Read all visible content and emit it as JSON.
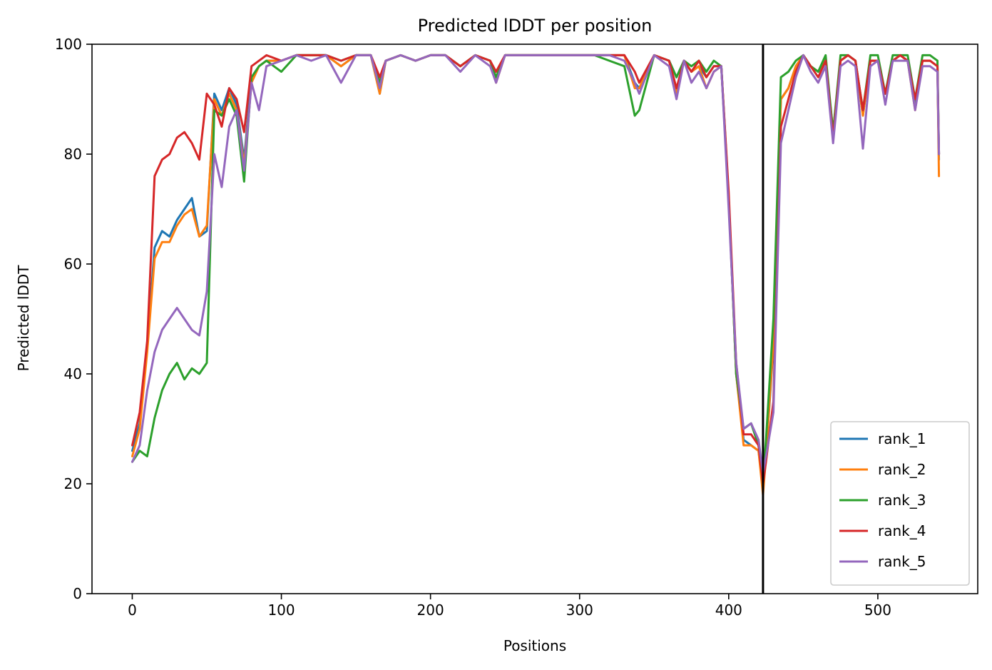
{
  "chart_data": {
    "type": "line",
    "title": "Predicted lDDT per position",
    "xlabel": "Positions",
    "ylabel": "Predicted lDDT",
    "xlim": [
      -27,
      567
    ],
    "ylim": [
      0,
      100
    ],
    "xticks": [
      0,
      100,
      200,
      300,
      400,
      500
    ],
    "yticks": [
      0,
      20,
      40,
      60,
      80,
      100
    ],
    "grid": false,
    "legend_position": "lower-right",
    "vertical_line": {
      "x": 423,
      "color": "#000000"
    },
    "series": [
      {
        "name": "rank_1",
        "color": "#1f77b4",
        "x": [
          0,
          5,
          10,
          15,
          20,
          25,
          30,
          35,
          40,
          45,
          50,
          55,
          60,
          65,
          70,
          75,
          80,
          85,
          90,
          100,
          110,
          120,
          130,
          140,
          150,
          160,
          166,
          170,
          180,
          190,
          200,
          210,
          220,
          230,
          240,
          244,
          250,
          260,
          270,
          280,
          290,
          300,
          310,
          320,
          330,
          337,
          340,
          350,
          360,
          365,
          370,
          375,
          380,
          385,
          390,
          395,
          400,
          405,
          410,
          415,
          420,
          423,
          425,
          430,
          435,
          440,
          445,
          450,
          455,
          460,
          465,
          470,
          475,
          480,
          485,
          490,
          495,
          500,
          505,
          510,
          515,
          520,
          525,
          530,
          535,
          540,
          541
        ],
        "values": [
          26,
          31,
          45,
          63,
          66,
          65,
          68,
          70,
          72,
          65,
          66,
          91,
          88,
          92,
          89,
          79,
          94,
          96,
          97,
          97,
          98,
          98,
          98,
          96,
          98,
          98,
          91,
          97,
          98,
          97,
          98,
          98,
          96,
          98,
          97,
          94,
          98,
          98,
          98,
          98,
          98,
          98,
          98,
          98,
          98,
          93,
          92,
          98,
          97,
          94,
          97,
          95,
          96,
          94,
          96,
          96,
          72,
          40,
          28,
          27,
          26,
          20,
          25,
          45,
          90,
          92,
          96,
          98,
          96,
          95,
          97,
          84,
          97,
          98,
          97,
          87,
          97,
          97,
          91,
          97,
          98,
          97,
          89,
          97,
          97,
          96,
          79
        ]
      },
      {
        "name": "rank_2",
        "color": "#ff7f0e",
        "x": [
          0,
          5,
          10,
          15,
          20,
          25,
          30,
          35,
          40,
          45,
          50,
          55,
          60,
          65,
          70,
          75,
          80,
          85,
          90,
          100,
          110,
          120,
          130,
          140,
          150,
          160,
          166,
          170,
          180,
          190,
          200,
          210,
          220,
          230,
          240,
          244,
          250,
          260,
          270,
          280,
          290,
          300,
          310,
          320,
          330,
          337,
          340,
          350,
          360,
          365,
          370,
          375,
          380,
          385,
          390,
          395,
          400,
          405,
          410,
          415,
          420,
          423,
          425,
          430,
          435,
          440,
          445,
          450,
          455,
          460,
          465,
          470,
          475,
          480,
          485,
          490,
          495,
          500,
          505,
          510,
          515,
          520,
          525,
          530,
          535,
          540,
          541
        ],
        "values": [
          25,
          30,
          44,
          61,
          64,
          64,
          67,
          69,
          70,
          65,
          67,
          90,
          87,
          91,
          88,
          78,
          93,
          96,
          97,
          97,
          98,
          98,
          98,
          96,
          98,
          98,
          91,
          97,
          98,
          97,
          98,
          98,
          96,
          98,
          97,
          93,
          98,
          98,
          98,
          98,
          98,
          98,
          98,
          98,
          98,
          92,
          92,
          98,
          97,
          91,
          97,
          95,
          96,
          92,
          95,
          96,
          72,
          40,
          27,
          27,
          26,
          18,
          25,
          46,
          90,
          92,
          96,
          98,
          96,
          95,
          97,
          84,
          97,
          98,
          97,
          87,
          97,
          97,
          91,
          97,
          98,
          97,
          88,
          97,
          97,
          96,
          76
        ]
      },
      {
        "name": "rank_3",
        "color": "#2ca02c",
        "x": [
          0,
          5,
          10,
          15,
          20,
          25,
          30,
          35,
          40,
          45,
          50,
          55,
          60,
          65,
          70,
          75,
          80,
          85,
          90,
          100,
          110,
          120,
          130,
          140,
          150,
          160,
          166,
          170,
          180,
          190,
          200,
          210,
          220,
          230,
          240,
          244,
          250,
          260,
          270,
          280,
          290,
          300,
          310,
          320,
          330,
          337,
          340,
          350,
          360,
          365,
          370,
          375,
          380,
          385,
          390,
          395,
          400,
          405,
          410,
          415,
          420,
          423,
          425,
          430,
          435,
          440,
          445,
          450,
          455,
          460,
          465,
          470,
          475,
          480,
          485,
          490,
          495,
          500,
          505,
          510,
          515,
          520,
          525,
          530,
          535,
          540,
          541
        ],
        "values": [
          24,
          26,
          25,
          32,
          37,
          40,
          42,
          39,
          41,
          40,
          42,
          88,
          87,
          90,
          87,
          75,
          94,
          96,
          97,
          95,
          98,
          98,
          98,
          97,
          98,
          98,
          93,
          97,
          98,
          97,
          98,
          98,
          96,
          98,
          97,
          94,
          98,
          98,
          98,
          98,
          98,
          98,
          98,
          97,
          96,
          87,
          88,
          98,
          97,
          94,
          97,
          96,
          97,
          95,
          97,
          96,
          72,
          40,
          30,
          31,
          27,
          21,
          28,
          50,
          94,
          95,
          97,
          98,
          96,
          95,
          98,
          84,
          98,
          98,
          97,
          88,
          98,
          98,
          91,
          98,
          98,
          98,
          90,
          98,
          98,
          97,
          80
        ]
      },
      {
        "name": "rank_4",
        "color": "#d62728",
        "x": [
          0,
          5,
          10,
          15,
          20,
          25,
          30,
          35,
          40,
          45,
          50,
          55,
          60,
          65,
          70,
          75,
          80,
          85,
          90,
          100,
          110,
          120,
          130,
          140,
          150,
          160,
          166,
          170,
          180,
          190,
          200,
          210,
          220,
          230,
          240,
          244,
          250,
          260,
          270,
          280,
          290,
          300,
          310,
          320,
          330,
          337,
          340,
          350,
          360,
          365,
          370,
          375,
          380,
          385,
          390,
          395,
          400,
          405,
          410,
          415,
          420,
          423,
          425,
          430,
          435,
          440,
          445,
          450,
          455,
          460,
          465,
          470,
          475,
          480,
          485,
          490,
          495,
          500,
          505,
          510,
          515,
          520,
          525,
          530,
          535,
          540,
          541
        ],
        "values": [
          27,
          33,
          46,
          76,
          79,
          80,
          83,
          84,
          82,
          79,
          91,
          89,
          85,
          92,
          90,
          84,
          96,
          97,
          98,
          97,
          98,
          98,
          98,
          97,
          98,
          98,
          94,
          97,
          98,
          97,
          98,
          98,
          96,
          98,
          97,
          95,
          98,
          98,
          98,
          98,
          98,
          98,
          98,
          98,
          98,
          95,
          93,
          98,
          97,
          92,
          97,
          95,
          97,
          94,
          96,
          96,
          73,
          42,
          29,
          29,
          27,
          20,
          24,
          35,
          85,
          90,
          95,
          98,
          96,
          94,
          97,
          83,
          97,
          98,
          97,
          88,
          97,
          97,
          91,
          97,
          98,
          97,
          90,
          97,
          97,
          96,
          80
        ]
      },
      {
        "name": "rank_5",
        "color": "#9467bd",
        "x": [
          0,
          5,
          10,
          15,
          20,
          25,
          30,
          35,
          40,
          45,
          50,
          55,
          60,
          65,
          70,
          75,
          80,
          85,
          90,
          100,
          110,
          120,
          130,
          140,
          150,
          160,
          166,
          170,
          180,
          190,
          200,
          210,
          220,
          230,
          240,
          244,
          250,
          260,
          270,
          280,
          290,
          300,
          310,
          320,
          330,
          337,
          340,
          350,
          360,
          365,
          370,
          375,
          380,
          385,
          390,
          395,
          400,
          405,
          410,
          415,
          420,
          423,
          425,
          430,
          435,
          440,
          445,
          450,
          455,
          460,
          465,
          470,
          475,
          480,
          485,
          490,
          495,
          500,
          505,
          510,
          515,
          520,
          525,
          530,
          535,
          540,
          541
        ],
        "values": [
          24,
          27,
          37,
          44,
          48,
          50,
          52,
          50,
          48,
          47,
          55,
          80,
          74,
          85,
          88,
          77,
          93,
          88,
          96,
          97,
          98,
          97,
          98,
          93,
          98,
          98,
          92,
          97,
          98,
          97,
          98,
          98,
          95,
          98,
          96,
          93,
          98,
          98,
          98,
          98,
          98,
          98,
          98,
          98,
          97,
          93,
          91,
          98,
          96,
          90,
          97,
          93,
          95,
          92,
          95,
          96,
          70,
          42,
          30,
          31,
          28,
          22,
          25,
          33,
          82,
          88,
          94,
          98,
          95,
          93,
          96,
          82,
          96,
          97,
          96,
          81,
          96,
          97,
          89,
          97,
          97,
          97,
          88,
          96,
          96,
          95,
          80
        ]
      }
    ]
  }
}
